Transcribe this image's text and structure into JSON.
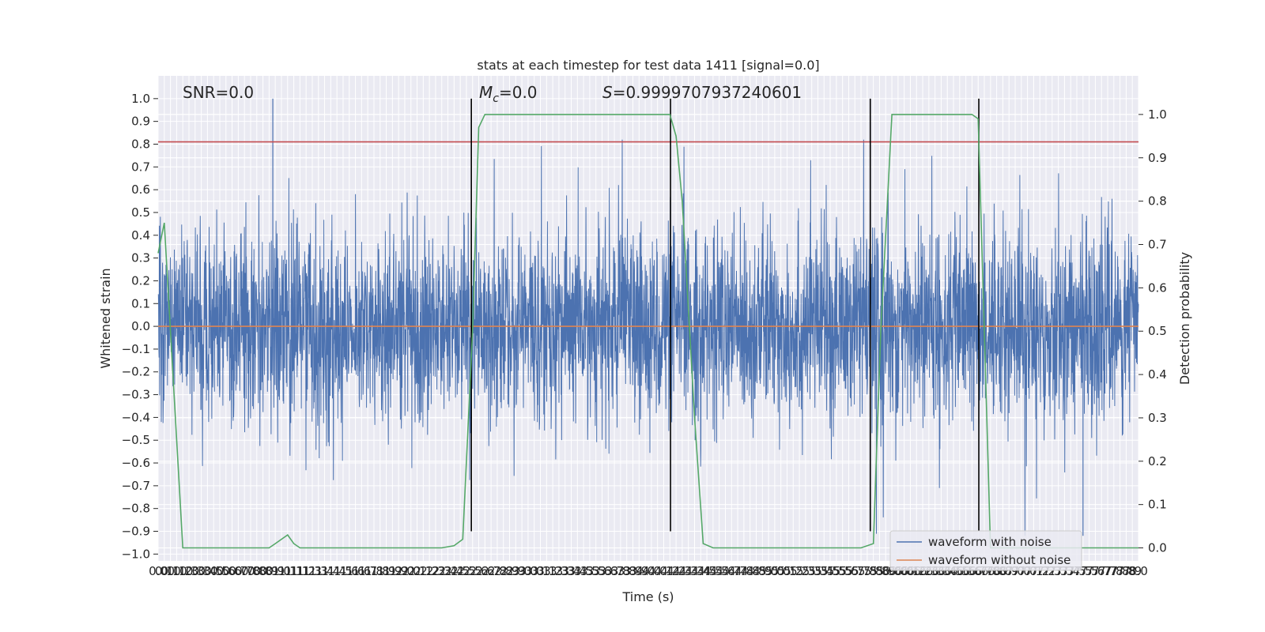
{
  "chart_data": {
    "type": "line",
    "title": "stats at each timestep for test data 1411 [signal=0.0]",
    "xlabel": "Time (s)",
    "ylabel": "Whitened strain",
    "ylabel_right": "Detection probability",
    "xlim": [
      0.0,
      7.95
    ],
    "ylim": [
      -1.03,
      1.1
    ],
    "ylim_right": [
      -0.03,
      1.0891
    ],
    "x_tick_step": 0.05,
    "y_ticks": [
      1.0,
      0.9,
      0.8,
      0.7,
      0.6,
      0.5,
      0.4,
      0.3,
      0.2,
      0.1,
      0.0,
      -0.1,
      -0.2,
      -0.3,
      -0.4,
      -0.5,
      -0.6,
      -0.7,
      -0.8,
      -0.9,
      -1.0
    ],
    "y_tick_labels": [
      "1.0",
      "0.9",
      "0.8",
      "0.7",
      "0.6",
      "0.5",
      "0.4",
      "0.3",
      "0.2",
      "0.1",
      "0.0",
      "−0.1",
      "−0.2",
      "−0.3",
      "−0.4",
      "−0.5",
      "−0.6",
      "−0.7",
      "−0.8",
      "−0.9",
      "−1.0"
    ],
    "y_ticks_right": [
      1.0,
      0.9,
      0.8,
      0.7,
      0.6,
      0.5,
      0.4,
      0.3,
      0.2,
      0.1,
      0.0
    ],
    "y_tick_labels_right": [
      "1.0",
      "0.9",
      "0.8",
      "0.7",
      "0.6",
      "0.5",
      "0.4",
      "0.3",
      "0.2",
      "0.1",
      "0.0"
    ],
    "grid": true,
    "legend_placement": "lower right",
    "annotations": {
      "snr": "SNR=0.0",
      "mc_symbol": "M",
      "mc_subscript": "c",
      "mc_value": "=0.0",
      "s_symbol": "S",
      "s_value": "=0.9999707937240601"
    },
    "threshold_line": {
      "y": 0.81,
      "color": "#c44e52"
    },
    "detection_boundaries_x": [
      2.54,
      4.155,
      5.775,
      6.655
    ],
    "series": [
      {
        "name": "waveform with noise",
        "color": "#4c72b0",
        "n_samples": 4000,
        "peak_max": 1.0,
        "peak_min": -0.92,
        "typical_amplitude": 0.22
      },
      {
        "name": "waveform without noise",
        "color": "#dd8452",
        "x": [
          0.0,
          7.95
        ],
        "y": [
          0.0,
          0.0
        ]
      },
      {
        "name": "detection probability",
        "axis": "right",
        "color": "#55a868",
        "x": [
          0.0,
          0.05,
          0.1,
          0.18,
          0.2,
          0.25,
          0.5,
          0.75,
          0.9,
          0.95,
          1.05,
          1.1,
          1.15,
          1.5,
          2.0,
          2.3,
          2.4,
          2.47,
          2.55,
          2.6,
          2.65,
          3.0,
          4.1,
          4.15,
          4.2,
          4.25,
          4.35,
          4.42,
          4.5,
          5.0,
          5.6,
          5.7,
          5.8,
          5.86,
          5.95,
          6.5,
          6.6,
          6.65,
          6.7,
          6.75,
          6.8,
          7.0,
          7.95
        ],
        "y": [
          0.68,
          0.75,
          0.5,
          0.1,
          0.0,
          0.0,
          0.0,
          0.0,
          0.0,
          0.01,
          0.03,
          0.01,
          0.0,
          0.0,
          0.0,
          0.0,
          0.005,
          0.02,
          0.5,
          0.97,
          1.0,
          1.0,
          1.0,
          1.0,
          0.95,
          0.8,
          0.3,
          0.01,
          0.0,
          0.0,
          0.0,
          0.0,
          0.01,
          0.5,
          1.0,
          1.0,
          1.0,
          0.99,
          0.5,
          0.0,
          0.0,
          0.0,
          0.0
        ]
      }
    ]
  }
}
